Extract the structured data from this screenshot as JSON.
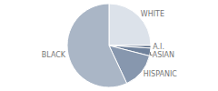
{
  "chart_data": {
    "type": "pie",
    "categories": [
      "WHITE",
      "A.I.",
      "ASIAN",
      "HISPANIC",
      "BLACK"
    ],
    "values": [
      25,
      1,
      3,
      14,
      57
    ],
    "colors": [
      "#dce2ea",
      "#4f6380",
      "#6f819b",
      "#8797ae",
      "#aab6c6"
    ]
  }
}
